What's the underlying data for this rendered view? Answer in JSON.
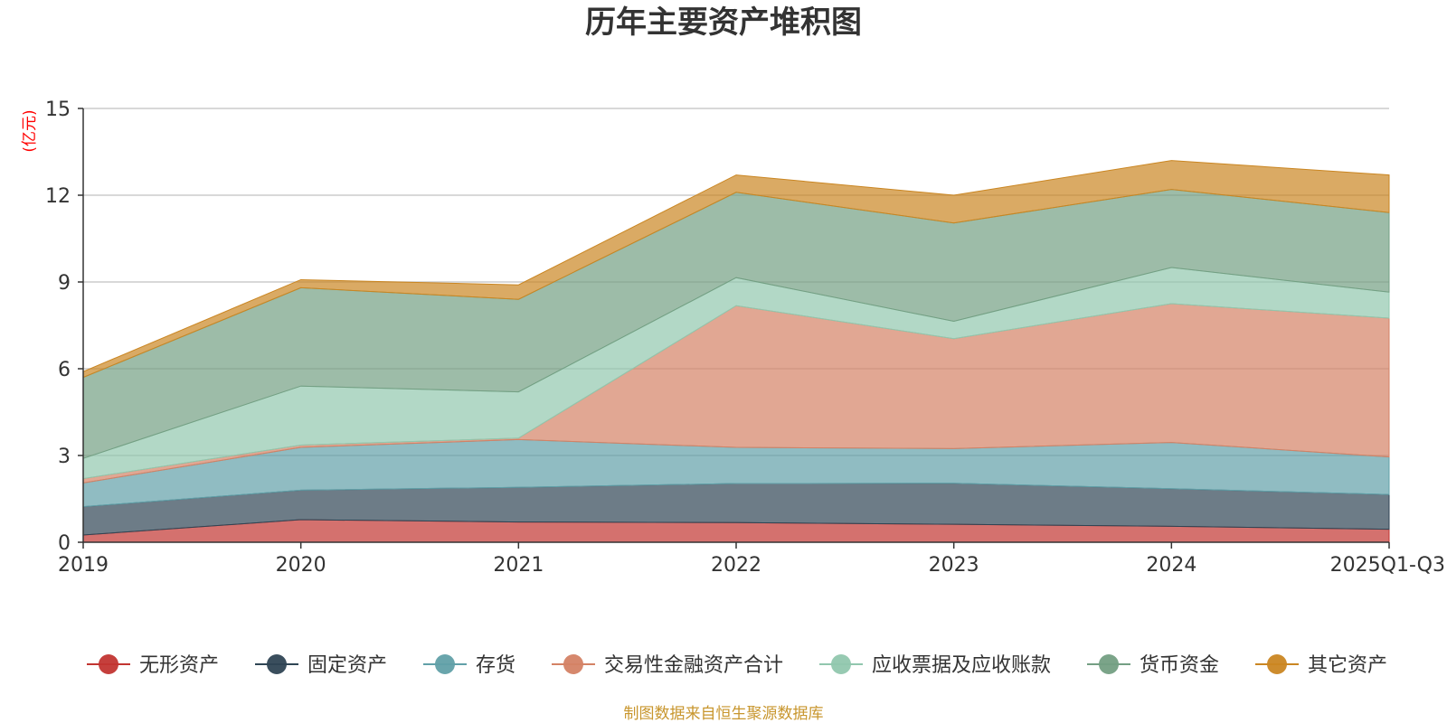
{
  "chart_data": {
    "type": "area",
    "stacked": true,
    "title": "历年主要资产堆积图",
    "unit_label": "(亿元)",
    "xlabel": "",
    "ylabel": "(亿元)",
    "categories": [
      "2019",
      "2020",
      "2021",
      "2022",
      "2023",
      "2024",
      "2025Q1-Q3"
    ],
    "ylim": [
      0,
      15
    ],
    "yticks": [
      0,
      3,
      6,
      9,
      12,
      15
    ],
    "grid": true,
    "legend_position": "bottom",
    "series": [
      {
        "name": "无形资产",
        "color": "#c23531",
        "values": [
          0.25,
          0.78,
          0.7,
          0.68,
          0.62,
          0.55,
          0.45
        ]
      },
      {
        "name": "固定资产",
        "color": "#2f4554",
        "values": [
          0.98,
          1.02,
          1.2,
          1.35,
          1.42,
          1.3,
          1.2
        ]
      },
      {
        "name": "存货",
        "color": "#61a0a8",
        "values": [
          0.82,
          1.48,
          1.65,
          1.25,
          1.2,
          1.6,
          1.3
        ]
      },
      {
        "name": "交易性金融资产合计",
        "color": "#d48265",
        "values": [
          0.15,
          0.08,
          0.05,
          4.9,
          3.8,
          4.8,
          4.8
        ]
      },
      {
        "name": "应收票据及应收账款",
        "color": "#91c7ae",
        "values": [
          0.7,
          2.04,
          1.6,
          0.97,
          0.6,
          1.25,
          0.9
        ]
      },
      {
        "name": "货币资金",
        "color": "#749f83",
        "values": [
          2.8,
          3.4,
          3.2,
          2.95,
          3.4,
          2.7,
          2.75
        ]
      },
      {
        "name": "其它资产",
        "color": "#ca8622",
        "values": [
          0.2,
          0.28,
          0.5,
          0.6,
          0.96,
          1.0,
          1.3
        ]
      }
    ]
  },
  "source_note": "制图数据来自恒生聚源数据库"
}
